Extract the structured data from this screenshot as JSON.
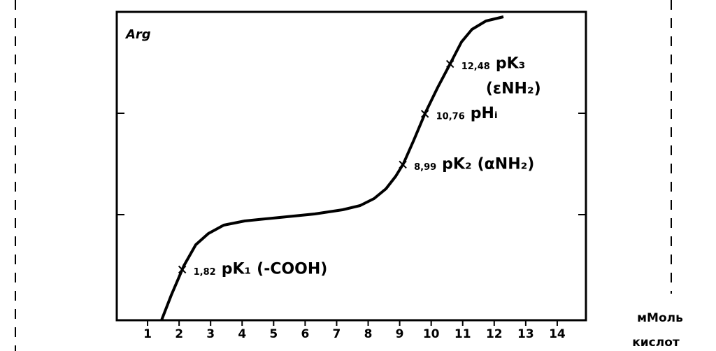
{
  "chart_data": {
    "type": "line",
    "title": "Arg",
    "x_label_lines": [
      "мМоль",
      "кислот"
    ],
    "xlim": [
      0,
      15
    ],
    "xticks": [
      1,
      2,
      3,
      4,
      5,
      6,
      7,
      8,
      9,
      10,
      11,
      12,
      13,
      14
    ],
    "color": "#000000",
    "points": {
      "x": [
        2.1,
        9.1,
        9.8,
        10.6
      ],
      "values": [
        1.82,
        8.99,
        10.76,
        12.48
      ],
      "value_labels": [
        "1,82",
        "8,99",
        "10,76",
        "12,48"
      ],
      "symbols": [
        "pK₁",
        "pK₂",
        "pHᵢ",
        "pK₃"
      ],
      "groups": [
        "(-COOH)",
        "(αNH₂)",
        null,
        "(εNH₂)"
      ]
    }
  }
}
